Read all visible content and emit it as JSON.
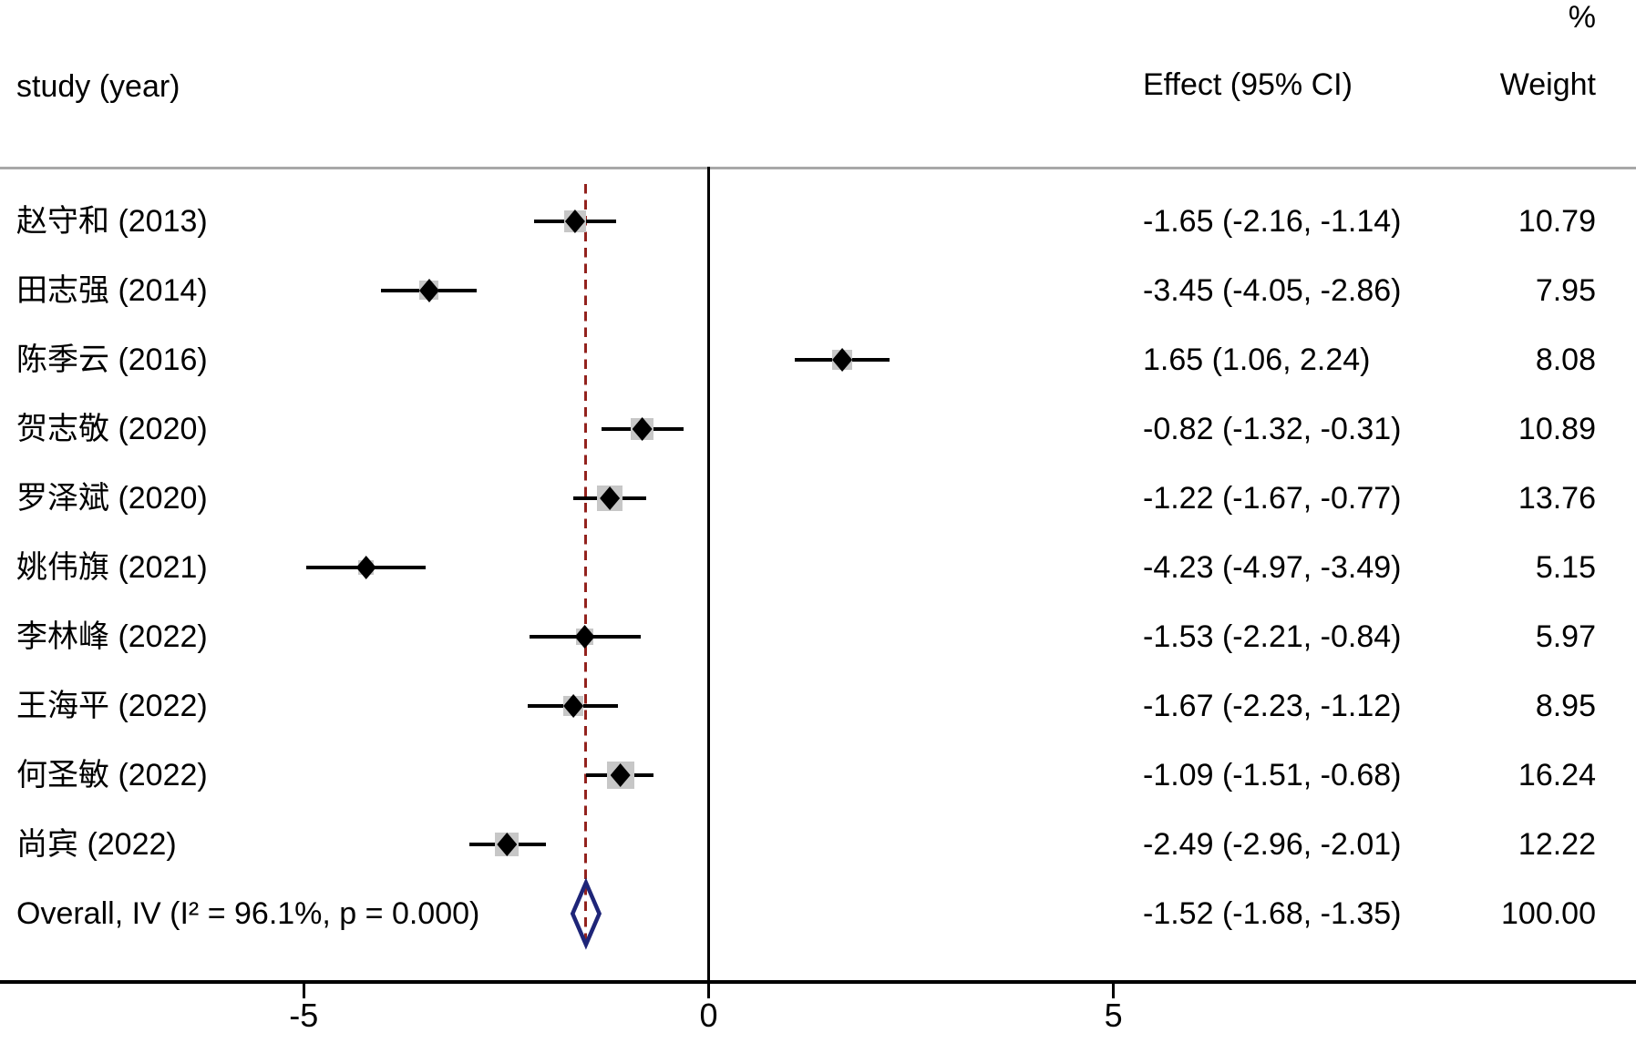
{
  "header": {
    "percent_label": "%",
    "study_col": "study (year)",
    "effect_col": "Effect (95% CI)",
    "weight_col": "Weight"
  },
  "chart_data": {
    "type": "forest_plot",
    "x_axis": {
      "ticks": [
        -5,
        0,
        5
      ],
      "tick_labels": [
        "-5",
        "0",
        "5"
      ]
    },
    "reference_line_x": 0,
    "overall_dashed_line_x": -1.52,
    "studies": [
      {
        "label": "赵守和 (2013)",
        "effect": -1.65,
        "ci_low": -2.16,
        "ci_high": -1.14,
        "effect_text": "-1.65 (-2.16, -1.14)",
        "weight": 10.79,
        "weight_text": "10.79"
      },
      {
        "label": "田志强 (2014)",
        "effect": -3.45,
        "ci_low": -4.05,
        "ci_high": -2.86,
        "effect_text": "-3.45 (-4.05, -2.86)",
        "weight": 7.95,
        "weight_text": "7.95"
      },
      {
        "label": "陈季云 (2016)",
        "effect": 1.65,
        "ci_low": 1.06,
        "ci_high": 2.24,
        "effect_text": "1.65 (1.06, 2.24)",
        "weight": 8.08,
        "weight_text": "8.08"
      },
      {
        "label": "贺志敬 (2020)",
        "effect": -0.82,
        "ci_low": -1.32,
        "ci_high": -0.31,
        "effect_text": "-0.82 (-1.32, -0.31)",
        "weight": 10.89,
        "weight_text": "10.89"
      },
      {
        "label": "罗泽斌 (2020)",
        "effect": -1.22,
        "ci_low": -1.67,
        "ci_high": -0.77,
        "effect_text": "-1.22 (-1.67, -0.77)",
        "weight": 13.76,
        "weight_text": "13.76"
      },
      {
        "label": "姚伟旗 (2021)",
        "effect": -4.23,
        "ci_low": -4.97,
        "ci_high": -3.49,
        "effect_text": "-4.23 (-4.97, -3.49)",
        "weight": 5.15,
        "weight_text": "5.15"
      },
      {
        "label": "李林峰 (2022)",
        "effect": -1.53,
        "ci_low": -2.21,
        "ci_high": -0.84,
        "effect_text": "-1.53 (-2.21, -0.84)",
        "weight": 5.97,
        "weight_text": "5.97"
      },
      {
        "label": "王海平 (2022)",
        "effect": -1.67,
        "ci_low": -2.23,
        "ci_high": -1.12,
        "effect_text": "-1.67 (-2.23, -1.12)",
        "weight": 8.95,
        "weight_text": "8.95"
      },
      {
        "label": "何圣敏 (2022)",
        "effect": -1.09,
        "ci_low": -1.51,
        "ci_high": -0.68,
        "effect_text": "-1.09 (-1.51, -0.68)",
        "weight": 16.24,
        "weight_text": "16.24"
      },
      {
        "label": "尚宾 (2022)",
        "effect": -2.49,
        "ci_low": -2.96,
        "ci_high": -2.01,
        "effect_text": "-2.49 (-2.96, -2.01)",
        "weight": 12.22,
        "weight_text": "12.22"
      }
    ],
    "overall": {
      "label": "Overall, IV (I² = 96.1%, p = 0.000)",
      "effect": -1.52,
      "ci_low": -1.68,
      "ci_high": -1.35,
      "effect_text": "-1.52 (-1.68, -1.35)",
      "weight": 100.0,
      "weight_text": "100.00"
    }
  },
  "colors": {
    "marker_and_lines": "#000000",
    "weight_square": "#c7c7c7",
    "overall_diamond": "#1e2578",
    "dashed_line": "#93221d",
    "separator_line": "#a8a8a8"
  }
}
